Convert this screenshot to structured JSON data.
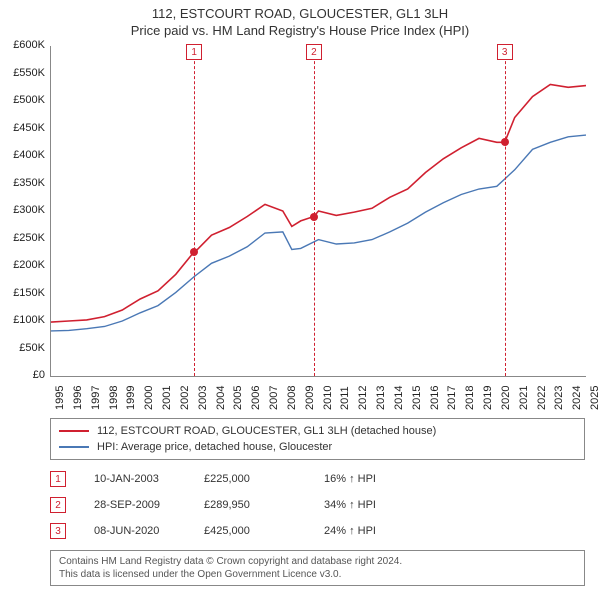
{
  "title_line1": "112, ESTCOURT ROAD, GLOUCESTER, GL1 3LH",
  "title_line2": "Price paid vs. HM Land Registry's House Price Index (HPI)",
  "chart": {
    "type": "line",
    "background_color": "#ffffff",
    "axis_color": "#888888",
    "ylabel_prefix": "£",
    "ylabel_suffix": "K",
    "ylim": [
      0,
      600000
    ],
    "ytick_step_k": 50,
    "yticks_k": [
      0,
      50,
      100,
      150,
      200,
      250,
      300,
      350,
      400,
      450,
      500,
      550,
      600
    ],
    "xlim": [
      "1995",
      "2025"
    ],
    "xticks": [
      "1995",
      "1996",
      "1997",
      "1998",
      "1999",
      "2000",
      "2001",
      "2002",
      "2003",
      "2004",
      "2005",
      "2006",
      "2007",
      "2008",
      "2009",
      "2010",
      "2011",
      "2012",
      "2013",
      "2014",
      "2015",
      "2016",
      "2017",
      "2018",
      "2019",
      "2020",
      "2021",
      "2022",
      "2023",
      "2024",
      "2025"
    ],
    "xtick_fontsize": 11,
    "ytick_fontsize": 11,
    "series": [
      {
        "name": "112, ESTCOURT ROAD, GLOUCESTER, GL1 3LH (detached house)",
        "color": "#d02030",
        "line_width": 1.6,
        "xs": [
          1995,
          1996,
          1997,
          1998,
          1999,
          2000,
          2001,
          2002,
          2003,
          2003.05,
          2004,
          2005,
          2006,
          2007,
          2008,
          2008.5,
          2009,
          2009.74,
          2010,
          2011,
          2012,
          2013,
          2014,
          2015,
          2016,
          2017,
          2018,
          2019,
          2020,
          2020.44,
          2021,
          2022,
          2023,
          2024,
          2025
        ],
        "ys": [
          98000,
          100000,
          102000,
          108000,
          120000,
          140000,
          155000,
          185000,
          225000,
          225000,
          256000,
          270000,
          290000,
          312000,
          300000,
          272000,
          282000,
          289950,
          300000,
          292000,
          298000,
          305000,
          325000,
          340000,
          370000,
          395000,
          415000,
          432000,
          425000,
          425000,
          470000,
          508000,
          530000,
          525000,
          528000
        ]
      },
      {
        "name": "HPI: Average price, detached house, Gloucester",
        "color": "#4a78b5",
        "line_width": 1.4,
        "xs": [
          1995,
          1996,
          1997,
          1998,
          1999,
          2000,
          2001,
          2002,
          2003,
          2004,
          2005,
          2006,
          2007,
          2008,
          2008.5,
          2009,
          2010,
          2011,
          2012,
          2013,
          2014,
          2015,
          2016,
          2017,
          2018,
          2019,
          2020,
          2021,
          2022,
          2023,
          2024,
          2025
        ],
        "ys": [
          82000,
          83000,
          86000,
          90000,
          100000,
          115000,
          128000,
          152000,
          180000,
          205000,
          218000,
          235000,
          260000,
          262000,
          230000,
          232000,
          248000,
          240000,
          242000,
          248000,
          262000,
          278000,
          298000,
          315000,
          330000,
          340000,
          345000,
          375000,
          412000,
          425000,
          435000,
          438000
        ]
      }
    ],
    "point_markers": [
      {
        "x": 2003.03,
        "y": 225000,
        "color": "#d02030"
      },
      {
        "x": 2009.74,
        "y": 289950,
        "color": "#d02030"
      },
      {
        "x": 2020.44,
        "y": 425000,
        "color": "#d02030"
      }
    ],
    "vertical_markers": [
      {
        "id": "1",
        "x": 2003.03,
        "color": "#d02030"
      },
      {
        "id": "2",
        "x": 2009.74,
        "color": "#d02030"
      },
      {
        "id": "3",
        "x": 2020.44,
        "color": "#d02030"
      }
    ]
  },
  "legend": {
    "items": [
      {
        "color": "#d02030",
        "label": "112, ESTCOURT ROAD, GLOUCESTER, GL1 3LH (detached house)"
      },
      {
        "color": "#4a78b5",
        "label": "HPI: Average price, detached house, Gloucester"
      }
    ]
  },
  "events": [
    {
      "id": "1",
      "color": "#d02030",
      "date": "10-JAN-2003",
      "price": "£225,000",
      "delta": "16% ↑ HPI"
    },
    {
      "id": "2",
      "color": "#d02030",
      "date": "28-SEP-2009",
      "price": "£289,950",
      "delta": "34% ↑ HPI"
    },
    {
      "id": "3",
      "color": "#d02030",
      "date": "08-JUN-2020",
      "price": "£425,000",
      "delta": "24% ↑ HPI"
    }
  ],
  "footer_line1": "Contains HM Land Registry data © Crown copyright and database right 2024.",
  "footer_line2": "This data is licensed under the Open Government Licence v3.0."
}
